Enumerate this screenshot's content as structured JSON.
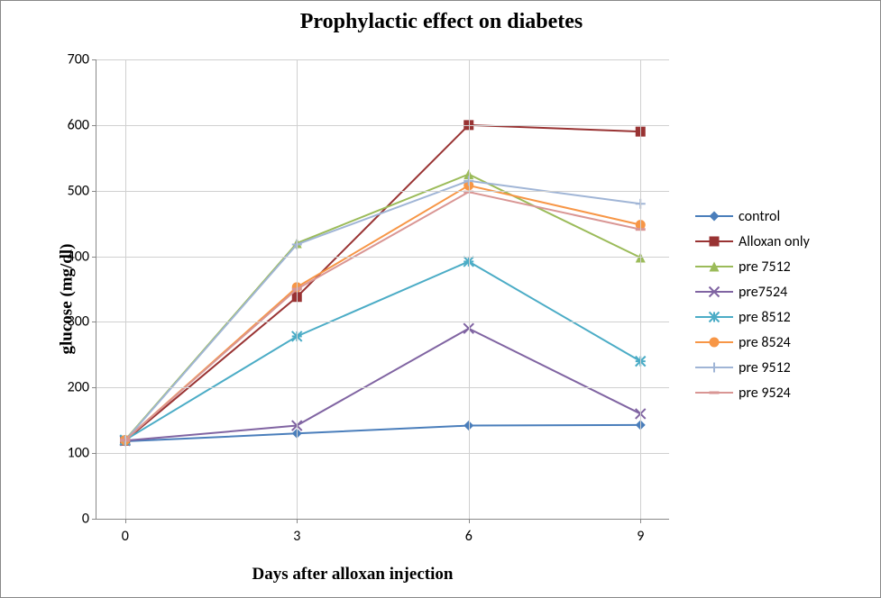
{
  "chart": {
    "type": "line",
    "title": "Prophylactic effect on diabetes",
    "title_fontsize": 24,
    "xlabel": "Days after alloxan injection",
    "ylabel": "glucose (mg/dl)",
    "axis_label_fontsize": 19,
    "tick_fontsize": 16,
    "legend_fontsize": 16,
    "background_color": "#ffffff",
    "grid_color": "#d0d0d0",
    "axis_color": "#888888",
    "xlim": [
      -0.5,
      9.5
    ],
    "ylim": [
      0,
      700
    ],
    "xticks": [
      0,
      3,
      6,
      9
    ],
    "yticks": [
      0,
      100,
      200,
      300,
      400,
      500,
      600,
      700
    ],
    "x_categories": [
      0,
      3,
      6,
      9
    ],
    "line_width": 2,
    "marker_size": 7,
    "series": [
      {
        "name": "control",
        "color": "#4a7ebb",
        "marker": "diamond",
        "values": [
          118,
          130,
          142,
          143
        ]
      },
      {
        "name": "Alloxan only",
        "color": "#993333",
        "marker": "square",
        "values": [
          119,
          338,
          600,
          590
        ]
      },
      {
        "name": "pre 7512",
        "color": "#9bbb59",
        "marker": "triangle",
        "values": [
          120,
          420,
          525,
          398
        ]
      },
      {
        "name": "pre7524",
        "color": "#8064a2",
        "marker": "x",
        "values": [
          119,
          142,
          290,
          160
        ]
      },
      {
        "name": "pre 8512",
        "color": "#4bacc6",
        "marker": "star",
        "values": [
          120,
          278,
          392,
          240
        ]
      },
      {
        "name": "pre 8524",
        "color": "#f79646",
        "marker": "circle",
        "values": [
          120,
          353,
          508,
          448
        ]
      },
      {
        "name": "pre 9512",
        "color": "#a0b5d6",
        "marker": "plus",
        "values": [
          119,
          418,
          515,
          480
        ]
      },
      {
        "name": "pre 9524",
        "color": "#d99694",
        "marker": "dash",
        "values": [
          120,
          350,
          498,
          441
        ]
      }
    ]
  }
}
